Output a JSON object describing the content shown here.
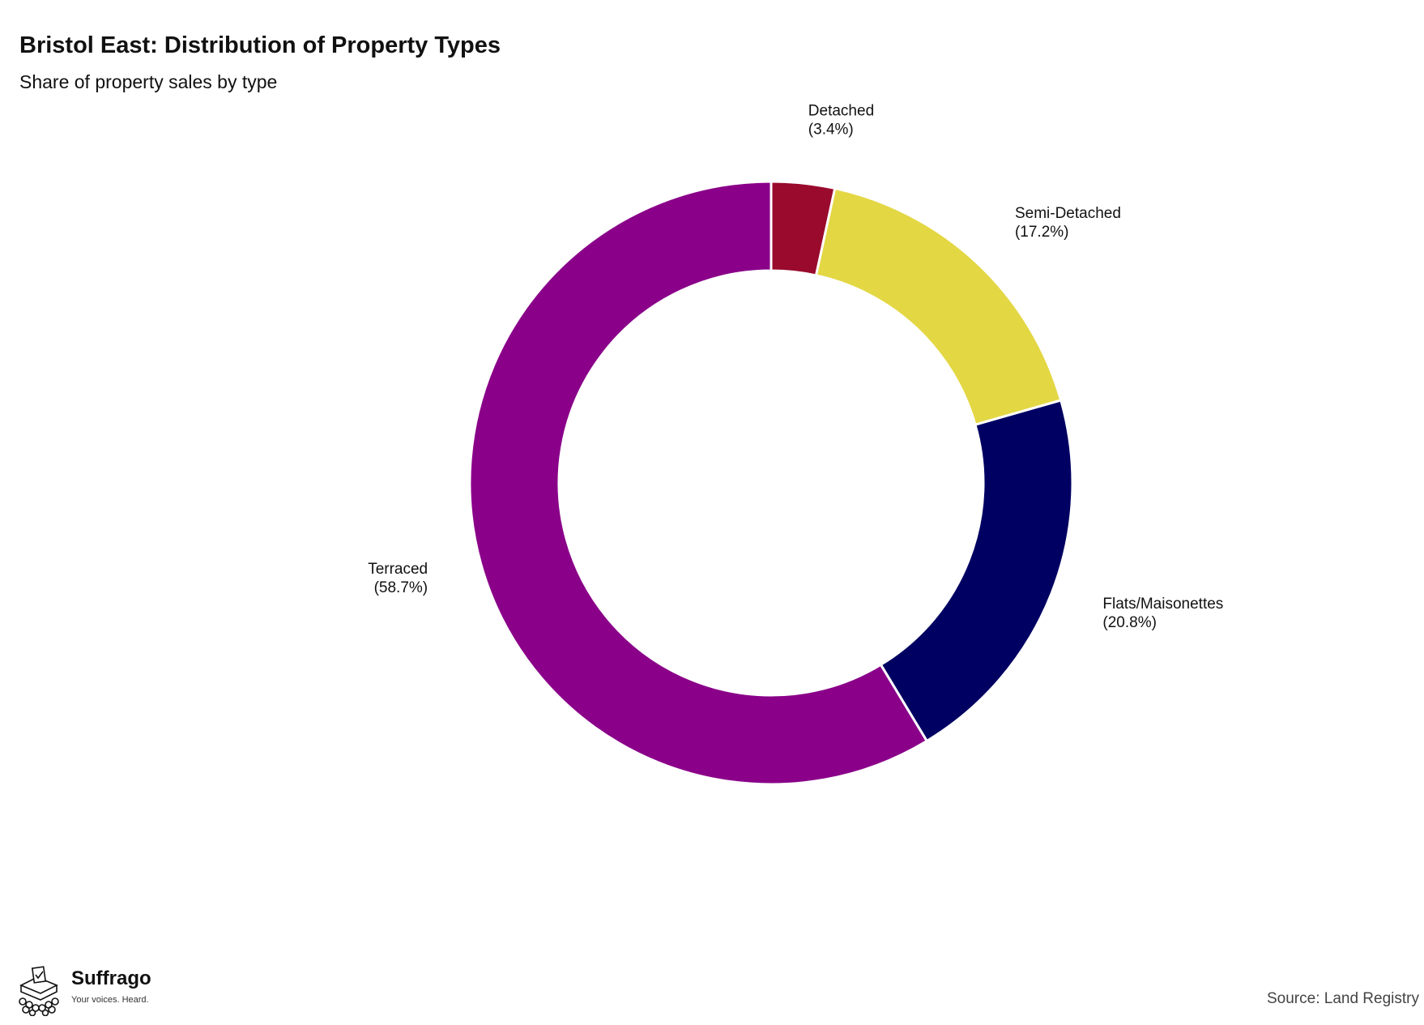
{
  "chart_data": {
    "type": "pie",
    "donut": true,
    "title": "Bristol East: Distribution of Property Types",
    "subtitle": "Share of property sales by type",
    "slices": [
      {
        "label": "Detached",
        "value": 3.4,
        "display": "(3.4%)",
        "color": "#990a2c"
      },
      {
        "label": "Semi-Detached",
        "value": 17.2,
        "display": "(17.2%)",
        "color": "#e3d744"
      },
      {
        "label": "Flats/Maisonettes",
        "value": 20.8,
        "display": "(20.8%)",
        "color": "#000062"
      },
      {
        "label": "Terraced",
        "value": 58.7,
        "display": "(58.7%)",
        "color": "#8a0089"
      }
    ],
    "start": "12 o'clock",
    "direction": "clockwise"
  },
  "footer": {
    "brand_name": "Suffrago",
    "brand_tagline": "Your voices. Heard.",
    "logo_icon": "ballot-box-icon",
    "source": "Source: Land Registry"
  }
}
